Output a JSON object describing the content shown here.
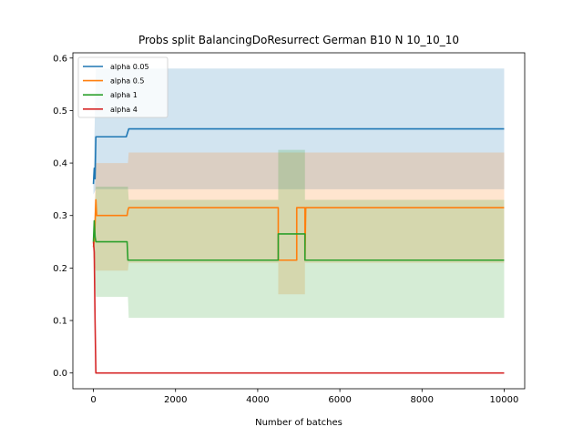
{
  "chart_data": {
    "type": "line",
    "title": "Probs split BalancingDoResurrect German B10 N 10_10_10",
    "xlabel": "Number of batches",
    "ylabel": "",
    "xlim": [
      -500,
      10500
    ],
    "ylim": [
      -0.03,
      0.61
    ],
    "xticks": [
      0,
      2000,
      4000,
      6000,
      8000,
      10000
    ],
    "yticks": [
      0.0,
      0.1,
      0.2,
      0.3,
      0.4,
      0.5,
      0.6
    ],
    "xtick_labels": [
      "0",
      "2000",
      "4000",
      "6000",
      "8000",
      "10000"
    ],
    "ytick_labels": [
      "0.0",
      "0.1",
      "0.2",
      "0.3",
      "0.4",
      "0.5",
      "0.6"
    ],
    "grid": false,
    "legend_position": "top-left",
    "series": [
      {
        "name": "alpha 0.05",
        "color": "#1f77b4",
        "line": [
          [
            0,
            0.36
          ],
          [
            20,
            0.39
          ],
          [
            40,
            0.37
          ],
          [
            60,
            0.45
          ],
          [
            800,
            0.45
          ],
          [
            820,
            0.455
          ],
          [
            860,
            0.465
          ],
          [
            10000,
            0.465
          ]
        ],
        "band_upper": [
          [
            0,
            0.36
          ],
          [
            60,
            0.58
          ],
          [
            10000,
            0.58
          ]
        ],
        "band_lower": [
          [
            0,
            0.34
          ],
          [
            60,
            0.35
          ],
          [
            10000,
            0.35
          ]
        ]
      },
      {
        "name": "alpha 0.5",
        "color": "#ff7f0e",
        "line": [
          [
            0,
            0.24
          ],
          [
            30,
            0.26
          ],
          [
            60,
            0.33
          ],
          [
            80,
            0.3
          ],
          [
            820,
            0.3
          ],
          [
            840,
            0.31
          ],
          [
            860,
            0.315
          ],
          [
            4500,
            0.315
          ],
          [
            4500,
            0.215
          ],
          [
            4950,
            0.215
          ],
          [
            4950,
            0.315
          ],
          [
            5150,
            0.315
          ],
          [
            5150,
            0.215
          ],
          [
            5170,
            0.315
          ],
          [
            10000,
            0.315
          ]
        ],
        "band_upper": [
          [
            0,
            0.24
          ],
          [
            60,
            0.4
          ],
          [
            840,
            0.4
          ],
          [
            860,
            0.42
          ],
          [
            4500,
            0.42
          ],
          [
            5150,
            0.42
          ],
          [
            10000,
            0.42
          ]
        ],
        "band_lower": [
          [
            0,
            0.22
          ],
          [
            60,
            0.195
          ],
          [
            840,
            0.195
          ],
          [
            860,
            0.21
          ],
          [
            4500,
            0.21
          ],
          [
            4500,
            0.15
          ],
          [
            5150,
            0.15
          ],
          [
            5150,
            0.21
          ],
          [
            10000,
            0.21
          ]
        ]
      },
      {
        "name": "alpha 1",
        "color": "#2ca02c",
        "line": [
          [
            0,
            0.25
          ],
          [
            20,
            0.29
          ],
          [
            40,
            0.26
          ],
          [
            60,
            0.25
          ],
          [
            820,
            0.25
          ],
          [
            840,
            0.215
          ],
          [
            4500,
            0.215
          ],
          [
            4500,
            0.265
          ],
          [
            5150,
            0.265
          ],
          [
            5150,
            0.215
          ],
          [
            10000,
            0.215
          ]
        ],
        "band_upper": [
          [
            0,
            0.25
          ],
          [
            60,
            0.355
          ],
          [
            840,
            0.355
          ],
          [
            860,
            0.33
          ],
          [
            4500,
            0.33
          ],
          [
            4500,
            0.425
          ],
          [
            5150,
            0.425
          ],
          [
            5150,
            0.33
          ],
          [
            10000,
            0.33
          ]
        ],
        "band_lower": [
          [
            0,
            0.23
          ],
          [
            60,
            0.145
          ],
          [
            840,
            0.145
          ],
          [
            860,
            0.105
          ],
          [
            4500,
            0.105
          ],
          [
            5150,
            0.105
          ],
          [
            10000,
            0.105
          ]
        ]
      },
      {
        "name": "alpha 4",
        "color": "#d62728",
        "line": [
          [
            0,
            0.25
          ],
          [
            20,
            0.23
          ],
          [
            40,
            0.1
          ],
          [
            60,
            0.0
          ],
          [
            10000,
            0.0
          ]
        ],
        "band_upper": [
          [
            0,
            0.25
          ],
          [
            60,
            0.0
          ],
          [
            10000,
            0.0
          ]
        ],
        "band_lower": [
          [
            0,
            0.25
          ],
          [
            60,
            0.0
          ],
          [
            10000,
            0.0
          ]
        ]
      }
    ]
  }
}
